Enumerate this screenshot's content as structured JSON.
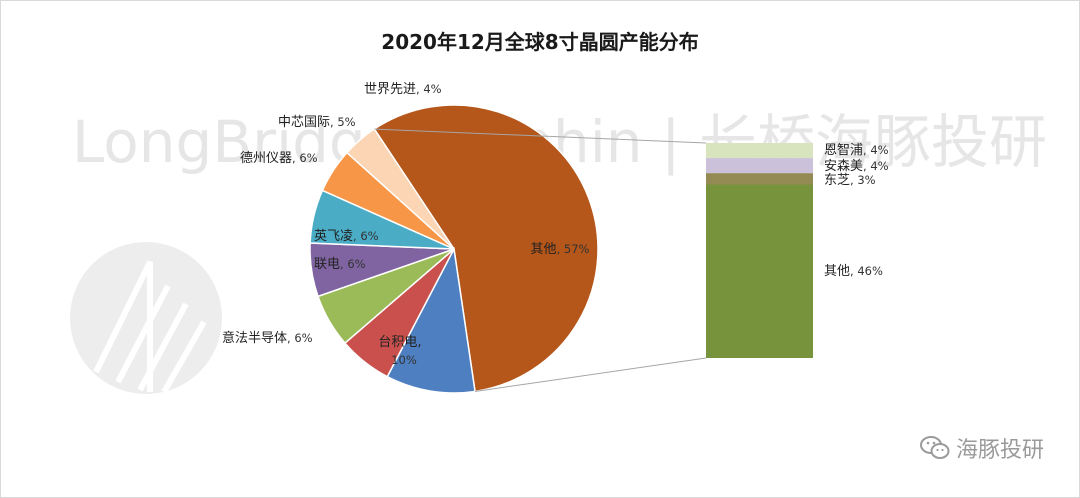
{
  "chart_data": {
    "type": "pie",
    "subtype": "pie-of-pie (bar of pie)",
    "title": "2020年12月全球8寸晶圆产能分布",
    "slices": [
      {
        "label": "其他",
        "value": 57,
        "display": "57%",
        "color": "#b5561a"
      },
      {
        "label": "台积电",
        "value": 10,
        "display": "10%",
        "color": "#4e7fc0"
      },
      {
        "label": "意法半导体",
        "value": 6,
        "display": "6%",
        "color": "#c9504c"
      },
      {
        "label": "联电",
        "value": 6,
        "display": "6%",
        "color": "#9bbb59"
      },
      {
        "label": "英飞凌",
        "value": 6,
        "display": "6%",
        "color": "#8064a2"
      },
      {
        "label": "德州仪器",
        "value": 6,
        "display": "6%",
        "color": "#4bacc6"
      },
      {
        "label": "中芯国际",
        "value": 5,
        "display": "5%",
        "color": "#f79646"
      },
      {
        "label": "世界先进",
        "value": 4,
        "display": "4%",
        "color": "#fcd5b5"
      }
    ],
    "breakdown": {
      "of_slice": "其他",
      "segments": [
        {
          "label": "恩智浦",
          "value": 4,
          "display": "4%",
          "color": "#d7e4bd"
        },
        {
          "label": "安森美",
          "value": 4,
          "display": "4%",
          "color": "#ccc1da"
        },
        {
          "label": "东芝",
          "value": 3,
          "display": "3%",
          "color": "#948a54"
        },
        {
          "label": "其他",
          "value": 46,
          "display": "46%",
          "color": "#77933c"
        }
      ]
    }
  },
  "watermark": {
    "text": "LongBridge Dolphin | 长桥海豚投研",
    "source": "海豚投研"
  }
}
